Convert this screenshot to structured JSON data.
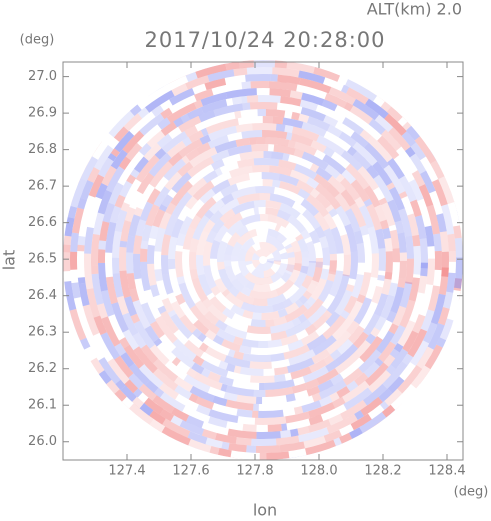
{
  "chart_data": {
    "type": "radar-ppi",
    "title": "2017/10/24 20:28:00",
    "subtitle": "ALT(km) 2.0",
    "x_label": "lon",
    "y_label": "lat",
    "x_unit": "(deg)",
    "y_unit": "(deg)",
    "xlim": [
      127.2,
      128.45
    ],
    "ylim": [
      25.95,
      27.04
    ],
    "xticks": [
      127.4,
      127.6,
      127.8,
      {
        "value": 128.0,
        "label": "128.0"
      },
      128.2,
      128.4
    ],
    "yticks": [
      {
        "value": 26.0,
        "label": "26.0"
      },
      26.1,
      26.2,
      26.3,
      26.4,
      26.5,
      26.6,
      26.7,
      26.8,
      26.9,
      {
        "value": 27.0,
        "label": "27.0"
      }
    ]
  }
}
